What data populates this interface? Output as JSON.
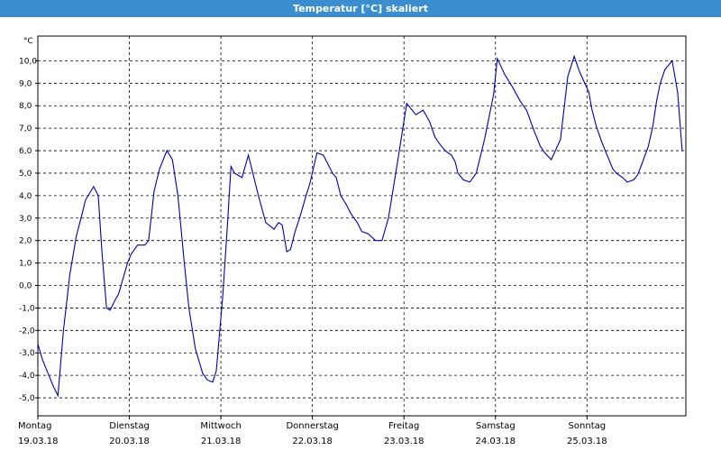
{
  "window": {
    "title": "Temperatur [°C] skaliert"
  },
  "chart_data": {
    "type": "line",
    "title": "Temperatur [°C] skaliert",
    "unit_label": "°C",
    "ylim": [
      -5.8,
      11.1
    ],
    "ytick_labels": [
      "10,0",
      "9,0",
      "8,0",
      "7,0",
      "6,0",
      "5,0",
      "4,0",
      "3,0",
      "2,0",
      "1,0",
      "0,0",
      "-1,0",
      "-2,0",
      "-3,0",
      "-4,0",
      "-5,0"
    ],
    "ytick_values": [
      10,
      9,
      8,
      7,
      6,
      5,
      4,
      3,
      2,
      1,
      0,
      -1,
      -2,
      -3,
      -4,
      -5
    ],
    "xlim": [
      0,
      7.08
    ],
    "days": [
      {
        "day": "Montag",
        "date": "19.03.18"
      },
      {
        "day": "Dienstag",
        "date": "20.03.18"
      },
      {
        "day": "Mittwoch",
        "date": "21.03.18"
      },
      {
        "day": "Donnerstag",
        "date": "22.03.18"
      },
      {
        "day": "Freitag",
        "date": "23.03.18"
      },
      {
        "day": "Samstag",
        "date": "24.03.18"
      },
      {
        "day": "Sonntag",
        "date": "25.03.18"
      }
    ],
    "grid": true,
    "line_color": "#0000aa",
    "series": [
      {
        "x": [
          0.0,
          0.05,
          0.12,
          0.17,
          0.22,
          0.28,
          0.35,
          0.42,
          0.49,
          0.52,
          0.61,
          0.66,
          0.7,
          0.75,
          0.79,
          0.85,
          0.88,
          0.98,
          1.02,
          1.09,
          1.17,
          1.21,
          1.27,
          1.33,
          1.41,
          1.47,
          1.53,
          1.6,
          1.65,
          1.72,
          1.8,
          1.85,
          1.91,
          1.95,
          2.02,
          2.07,
          2.11,
          2.15,
          2.23,
          2.3,
          2.41,
          2.49,
          2.55,
          2.58,
          2.63,
          2.67,
          2.72,
          2.76,
          2.81,
          2.86,
          2.93,
          2.97,
          3.05,
          3.12,
          3.22,
          3.26,
          3.31,
          3.37,
          3.42,
          3.49,
          3.54,
          3.61,
          3.69,
          3.76,
          3.83,
          3.93,
          4.03,
          4.13,
          4.21,
          4.28,
          4.34,
          4.39,
          4.45,
          4.52,
          4.56,
          4.59,
          4.65,
          4.72,
          4.79,
          4.88,
          4.98,
          5.02,
          5.1,
          5.19,
          5.27,
          5.34,
          5.42,
          5.49,
          5.54,
          5.61,
          5.71,
          5.79,
          5.86,
          5.92,
          6.02,
          6.05,
          6.1,
          6.16,
          6.21,
          6.28,
          6.32,
          6.39,
          6.44,
          6.51,
          6.55,
          6.59,
          6.67,
          6.72,
          6.76,
          6.8,
          6.85,
          6.93,
          6.99,
          7.04
        ],
        "y": [
          -2.6,
          -3.3,
          -4.0,
          -4.5,
          -4.9,
          -2.0,
          0.5,
          2.2,
          3.3,
          3.8,
          4.4,
          4.0,
          1.5,
          -1.0,
          -1.1,
          -0.6,
          -0.4,
          1.0,
          1.4,
          1.8,
          1.8,
          2.0,
          4.2,
          5.2,
          6.0,
          5.6,
          4.0,
          1.0,
          -1.0,
          -2.8,
          -3.9,
          -4.2,
          -4.3,
          -3.8,
          -0.5,
          2.6,
          5.3,
          5.0,
          4.8,
          5.8,
          4.0,
          2.8,
          2.6,
          2.5,
          2.8,
          2.7,
          1.5,
          1.6,
          2.4,
          3.0,
          4.0,
          4.5,
          5.9,
          5.8,
          5.0,
          4.8,
          4.0,
          3.6,
          3.2,
          2.8,
          2.4,
          2.3,
          2.0,
          2.0,
          3.0,
          5.5,
          8.1,
          7.6,
          7.8,
          7.3,
          6.6,
          6.3,
          6.0,
          5.8,
          5.5,
          5.0,
          4.7,
          4.6,
          5.0,
          6.5,
          8.5,
          10.1,
          9.4,
          8.8,
          8.2,
          7.8,
          6.9,
          6.2,
          5.9,
          5.6,
          6.5,
          9.3,
          10.2,
          9.5,
          8.6,
          7.9,
          7.1,
          6.4,
          5.9,
          5.2,
          5.0,
          4.8,
          4.6,
          4.7,
          4.9,
          5.3,
          6.2,
          7.1,
          8.2,
          9.0,
          9.6,
          10.0,
          8.6,
          6.0
        ]
      }
    ]
  }
}
